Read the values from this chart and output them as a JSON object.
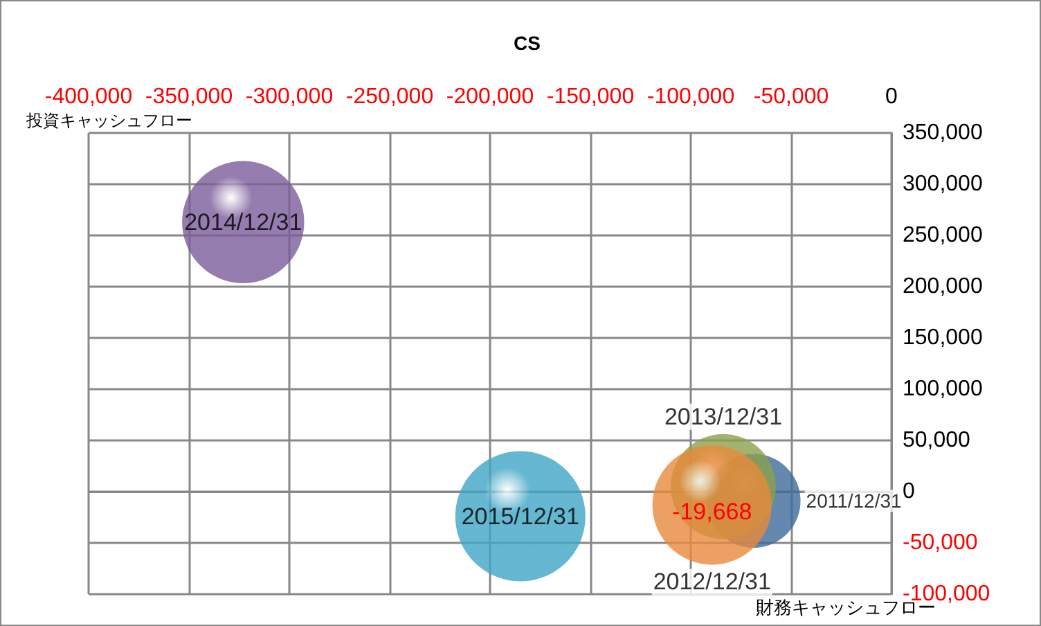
{
  "chart_data": {
    "type": "bubble",
    "title": "CS",
    "xlabel": "財務キャッシュフロー",
    "ylabel": "投資キャッシュフロー",
    "xlim": [
      -400000,
      0
    ],
    "ylim": [
      -100000,
      350000
    ],
    "xticks": [
      {
        "value": -400000,
        "label": "-400,000"
      },
      {
        "value": -350000,
        "label": "-350,000"
      },
      {
        "value": -300000,
        "label": "-300,000"
      },
      {
        "value": -250000,
        "label": "-250,000"
      },
      {
        "value": -200000,
        "label": "-200,000"
      },
      {
        "value": -150000,
        "label": "-150,000"
      },
      {
        "value": -100000,
        "label": "-100,000"
      },
      {
        "value": -50000,
        "label": "-50,000"
      },
      0
    ],
    "yticks": [
      {
        "value": -100000,
        "label": "-100,000"
      },
      {
        "value": -50000,
        "label": "-50,000"
      },
      0,
      {
        "value": 50000,
        "label": "50,000"
      },
      {
        "value": 100000,
        "label": "100,000"
      },
      {
        "value": 150000,
        "label": "150,000"
      },
      {
        "value": 200000,
        "label": "200,000"
      },
      {
        "value": 250000,
        "label": "250,000"
      },
      {
        "value": 300000,
        "label": "300,000"
      },
      {
        "value": 350000,
        "label": "350,000"
      }
    ],
    "series": [
      {
        "name": "2011/12/31",
        "color": "#3d6a9a",
        "x": [
          -68700
        ],
        "values": [
          -9000
        ],
        "sizes": [
          0.52
        ]
      },
      {
        "name": "2013/12/31",
        "color": "#8aa04a",
        "x": [
          -83800
        ],
        "values": [
          5000
        ],
        "sizes": [
          0.65
        ]
      },
      {
        "name": "2012/12/31",
        "color": "#e8893a",
        "x": [
          -89400
        ],
        "values": [
          -13000
        ],
        "sizes": [
          0.84
        ]
      },
      {
        "name": "2014/12/31",
        "color": "#7a5c9a",
        "x": [
          -323000
        ],
        "values": [
          263000
        ],
        "sizes": [
          0.88
        ]
      },
      {
        "name": "2015/12/31",
        "color": "#3fa5c5",
        "x": [
          -184900
        ],
        "values": [
          -24000
        ],
        "sizes": [
          1
        ]
      }
    ],
    "annotations": [
      {
        "text": "-19,668",
        "x": -89400,
        "y": -19668
      }
    ],
    "grid": true,
    "legend": false
  }
}
